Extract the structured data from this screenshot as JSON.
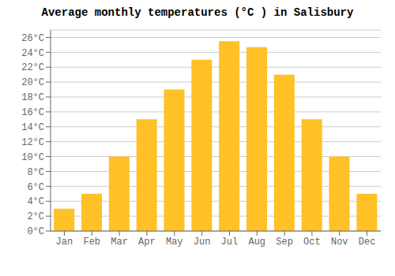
{
  "chart_data": {
    "type": "bar",
    "title": "Average monthly temperatures (°C ) in Salisbury",
    "categories": [
      "Jan",
      "Feb",
      "Mar",
      "Apr",
      "May",
      "Jun",
      "Jul",
      "Aug",
      "Sep",
      "Oct",
      "Nov",
      "Dec"
    ],
    "values": [
      3,
      5,
      10,
      15,
      19,
      23,
      25.5,
      24.7,
      21,
      15,
      10,
      5
    ],
    "color": "#FFC125",
    "ylim": [
      0,
      27
    ],
    "yticks": [
      {
        "value": 0,
        "label": "0°C"
      },
      {
        "value": 2,
        "label": "2°C"
      },
      {
        "value": 4,
        "label": "4°C"
      },
      {
        "value": 6,
        "label": "6°C"
      },
      {
        "value": 8,
        "label": "8°C"
      },
      {
        "value": 10,
        "label": "10°C"
      },
      {
        "value": 12,
        "label": "12°C"
      },
      {
        "value": 14,
        "label": "14°C"
      },
      {
        "value": 16,
        "label": "16°C"
      },
      {
        "value": 18,
        "label": "18°C"
      },
      {
        "value": 20,
        "label": "20°C"
      },
      {
        "value": 22,
        "label": "22°C"
      },
      {
        "value": 24,
        "label": "24°C"
      },
      {
        "value": 26,
        "label": "26°C"
      }
    ],
    "grid": true
  }
}
